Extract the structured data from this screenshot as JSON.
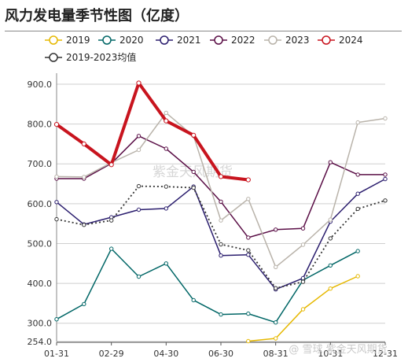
{
  "title": "风力发电量季节性图（亿度）",
  "watermark": "紫金天风期货",
  "watermark_br": "@ 雪球 紫金天风期货",
  "chart_data": {
    "type": "line",
    "title": "风力发电量季节性图（亿度）",
    "xlabel": "",
    "ylabel": "",
    "ylim": [
      254,
      920
    ],
    "yticks": [
      254.0,
      300.0,
      400.0,
      500.0,
      600.0,
      700.0,
      800.0,
      900.0
    ],
    "ytick_labels": [
      "254.0",
      "300.0",
      "400.0",
      "500.0",
      "600.0",
      "700.0",
      "800.0",
      "900.0"
    ],
    "xtick_labels": [
      "01-31",
      "02-29",
      "04-30",
      "06-30",
      "08-31",
      "10-31",
      "12-31"
    ],
    "grid": "horizontal",
    "legend": "top",
    "series": [
      {
        "name": "2019",
        "color": "#e6b800",
        "dash": false,
        "width": 1.5,
        "points": [
          [
            8,
            255
          ],
          [
            9,
            262
          ],
          [
            10,
            335
          ],
          [
            11,
            387
          ],
          [
            12,
            418
          ]
        ]
      },
      {
        "name": "2020",
        "color": "#006666",
        "dash": false,
        "width": 1.5,
        "points": [
          [
            1,
            310
          ],
          [
            2,
            348
          ],
          [
            3,
            487
          ],
          [
            4,
            417
          ],
          [
            5,
            450
          ],
          [
            6,
            358
          ],
          [
            7,
            322
          ],
          [
            8,
            324
          ],
          [
            9,
            302
          ],
          [
            10,
            408
          ],
          [
            11,
            445
          ],
          [
            12,
            481
          ]
        ]
      },
      {
        "name": "2021",
        "color": "#2b1e6e",
        "dash": false,
        "width": 1.5,
        "points": [
          [
            1,
            604
          ],
          [
            2,
            548
          ],
          [
            3,
            566
          ],
          [
            4,
            585
          ],
          [
            5,
            588
          ],
          [
            6,
            643
          ],
          [
            7,
            470
          ],
          [
            8,
            472
          ],
          [
            9,
            385
          ],
          [
            10,
            413
          ],
          [
            11,
            555
          ],
          [
            12,
            625
          ],
          [
            13,
            662
          ]
        ]
      },
      {
        "name": "2022",
        "color": "#5a0e46",
        "dash": false,
        "width": 1.5,
        "points": [
          [
            1,
            663
          ],
          [
            2,
            663
          ],
          [
            3,
            701
          ],
          [
            4,
            770
          ],
          [
            5,
            738
          ],
          [
            6,
            680
          ],
          [
            7,
            605
          ],
          [
            8,
            515
          ],
          [
            9,
            535
          ],
          [
            10,
            538
          ],
          [
            11,
            704
          ],
          [
            12,
            673
          ],
          [
            13,
            673
          ]
        ]
      },
      {
        "name": "2023",
        "color": "#b9b3aa",
        "dash": false,
        "width": 1.5,
        "points": [
          [
            1,
            668
          ],
          [
            2,
            667
          ],
          [
            3,
            703
          ],
          [
            4,
            735
          ],
          [
            5,
            828
          ],
          [
            6,
            770
          ],
          [
            7,
            558
          ],
          [
            8,
            612
          ],
          [
            9,
            441
          ],
          [
            10,
            497
          ],
          [
            11,
            560
          ],
          [
            12,
            804
          ],
          [
            13,
            814
          ]
        ]
      },
      {
        "name": "2024",
        "color": "#c8141e",
        "dash": false,
        "width": 4,
        "points": [
          [
            1,
            799
          ],
          [
            2,
            750
          ],
          [
            3,
            698
          ],
          [
            4,
            903
          ],
          [
            5,
            808
          ],
          [
            6,
            772
          ],
          [
            7,
            668
          ],
          [
            8,
            660
          ]
        ]
      },
      {
        "name": "2019-2023均值",
        "color": "#333333",
        "dash": true,
        "width": 1.8,
        "points": [
          [
            1,
            561
          ],
          [
            2,
            547
          ],
          [
            3,
            558
          ],
          [
            4,
            644
          ],
          [
            5,
            643
          ],
          [
            6,
            640
          ],
          [
            7,
            498
          ],
          [
            8,
            483
          ],
          [
            9,
            388
          ],
          [
            10,
            404
          ],
          [
            11,
            513
          ],
          [
            12,
            587
          ],
          [
            13,
            608
          ]
        ]
      }
    ]
  }
}
